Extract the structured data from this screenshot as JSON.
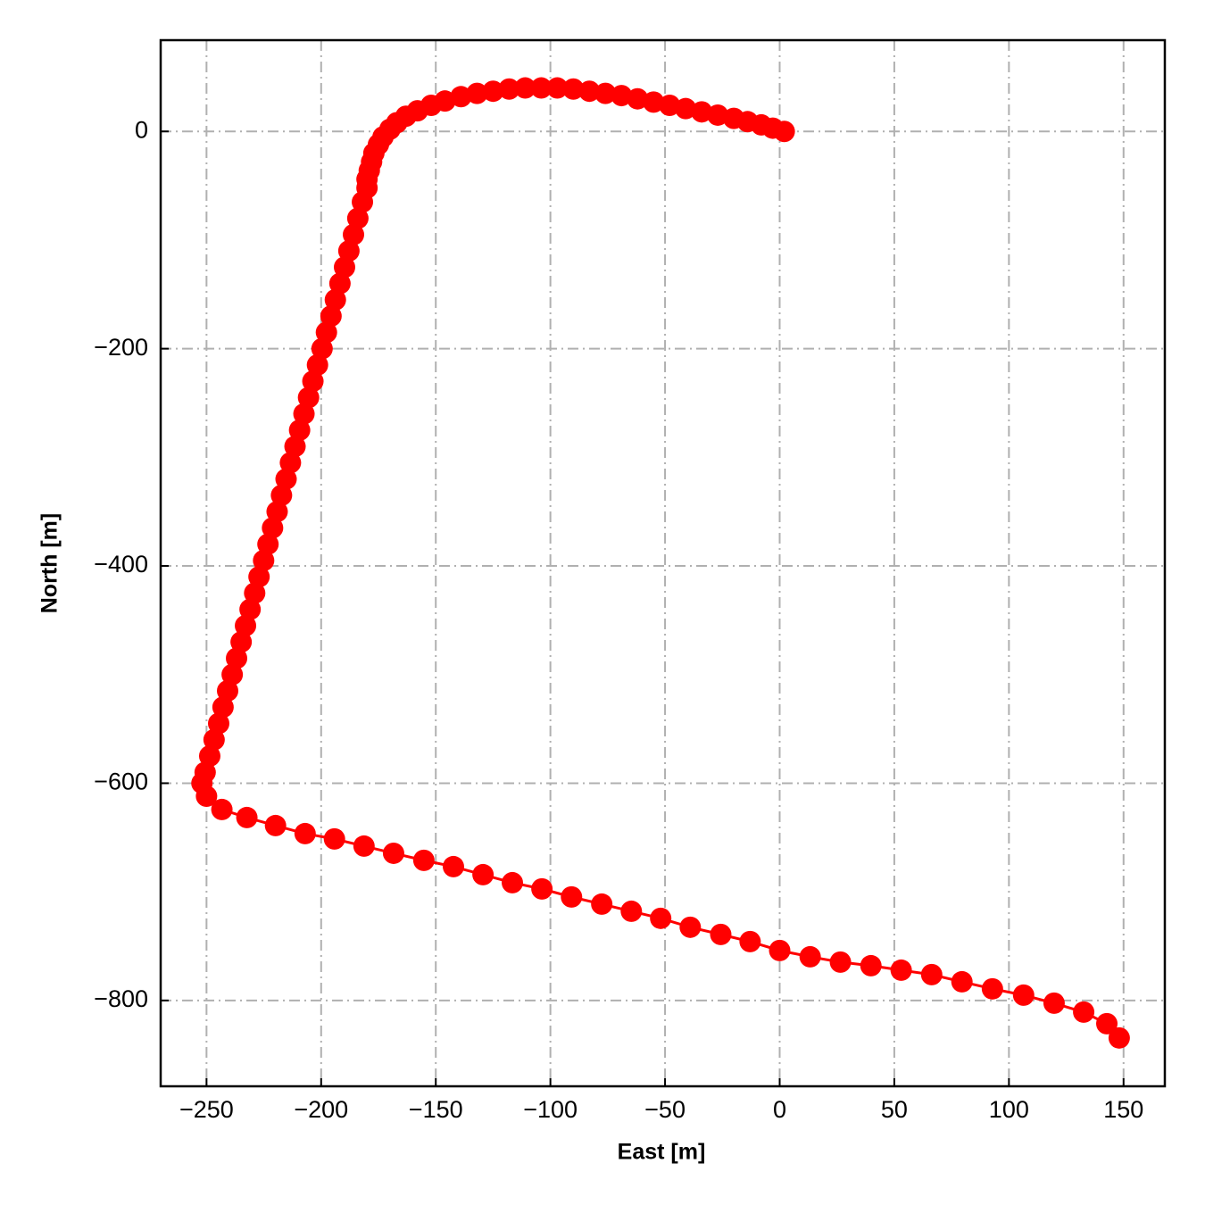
{
  "chart_data": {
    "type": "line",
    "xlabel": "East [m]",
    "ylabel": "North [m]",
    "color": "#ff0000",
    "grid": true,
    "markers": true,
    "xlim": [
      -270,
      168
    ],
    "ylim": [
      -879,
      84
    ],
    "xticks": [
      {
        "value": -250,
        "label": "−250"
      },
      {
        "value": -200,
        "label": "−200"
      },
      {
        "value": -150,
        "label": "−150"
      },
      {
        "value": -100,
        "label": "−100"
      },
      {
        "value": -50,
        "label": "−50"
      },
      0,
      50,
      100,
      150
    ],
    "yticks": [
      {
        "value": -800,
        "label": "−800"
      },
      {
        "value": -600,
        "label": "−600"
      },
      {
        "value": -400,
        "label": "−400"
      },
      {
        "value": -200,
        "label": "−200"
      },
      0
    ],
    "x": [
      2,
      -3,
      -8,
      -14,
      -20,
      -27,
      -34,
      -41,
      -48,
      -55,
      -62,
      -69,
      -76,
      -83,
      -90,
      -97,
      -104,
      -111,
      -118,
      -125,
      -132,
      -139,
      -146,
      -152,
      -158,
      -163,
      -167,
      -170,
      -173,
      -175,
      -177,
      -178,
      -179,
      -180,
      -180,
      -182,
      -184,
      -185.9,
      -187.9,
      -189.8,
      -191.8,
      -193.8,
      -195.7,
      -197.7,
      -199.6,
      -201.6,
      -203.6,
      -205.5,
      -207.5,
      -209.4,
      -211.4,
      -213.4,
      -215.3,
      -217.3,
      -219.2,
      -221.2,
      -223.2,
      -225.1,
      -227.1,
      -229,
      -231,
      -233,
      -234.9,
      -236.9,
      -238.8,
      -240.8,
      -242.8,
      -244.7,
      -246.7,
      -248.6,
      -250.6,
      -252,
      -250,
      -243.3,
      -232.4,
      -219.9,
      -207,
      -194.2,
      -181.3,
      -168.4,
      -155.2,
      -142.3,
      -129.4,
      -116.6,
      -103.7,
      -90.8,
      -77.6,
      -64.7,
      -51.9,
      -39,
      -25.7,
      -12.9,
      0,
      13.3,
      26.5,
      39.8,
      53,
      66.3,
      79.5,
      92.8,
      106.4,
      119.7,
      132.6,
      142.7,
      148.1
    ],
    "values": [
      0,
      3,
      6,
      9,
      12,
      15,
      18,
      21,
      24,
      27,
      30,
      33,
      35,
      37,
      39,
      40,
      40,
      40,
      39,
      37,
      35,
      32,
      28,
      24,
      19,
      14,
      8,
      2,
      -5,
      -12,
      -20,
      -28,
      -36,
      -44,
      -52,
      -65,
      -80,
      -95,
      -110,
      -125,
      -140,
      -155,
      -170,
      -185,
      -200,
      -215,
      -230,
      -245,
      -260,
      -275,
      -290,
      -305,
      -320,
      -335,
      -350,
      -365,
      -380,
      -395,
      -410,
      -425,
      -440,
      -455,
      -470,
      -485,
      -500,
      -515,
      -530,
      -545,
      -560,
      -575,
      -590,
      -600,
      -612,
      -624.2,
      -631.6,
      -639,
      -646.4,
      -651.3,
      -657.9,
      -664.5,
      -671,
      -676.8,
      -684.2,
      -691.6,
      -697.3,
      -704.7,
      -711.3,
      -717.9,
      -724.4,
      -732.6,
      -739.2,
      -745.8,
      -754,
      -759.8,
      -764.7,
      -768,
      -772.1,
      -776.2,
      -782.8,
      -789.3,
      -795.1,
      -802.5,
      -810.7,
      -821.4,
      -834.5
    ]
  }
}
